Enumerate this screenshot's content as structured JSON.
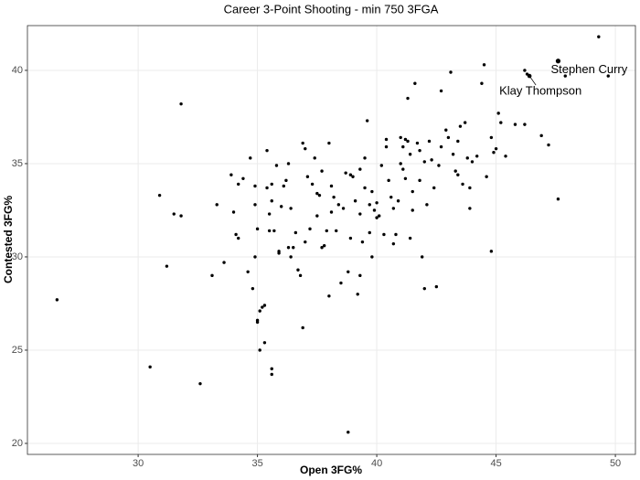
{
  "chart_data": {
    "type": "scatter",
    "title": "Career 3-Point Shooting - min 750 3FGA",
    "x_label": "Open 3FG%",
    "y_label": "Contested 3FG%",
    "color": "#000000",
    "grid": true,
    "xlim": [
      25.36,
      50.84
    ],
    "ylim": [
      19.41,
      42.4
    ],
    "xticks": [
      30,
      35,
      40,
      45,
      50
    ],
    "yticks": [
      20,
      25,
      30,
      35,
      40
    ],
    "x": [
      26.6,
      30.5,
      30.9,
      31.2,
      31.5,
      31.8,
      31.8,
      32.6,
      33.1,
      33.3,
      33.6,
      33.9,
      34.0,
      34.1,
      34.2,
      34.2,
      34.4,
      34.6,
      34.7,
      34.8,
      34.9,
      34.9,
      34.9,
      35.0,
      35.0,
      35.0,
      35.1,
      35.2,
      35.3,
      35.1,
      35.3,
      35.4,
      35.4,
      35.5,
      35.5,
      35.6,
      35.6,
      35.6,
      35.6,
      35.7,
      35.8,
      35.9,
      35.9,
      36.0,
      36.1,
      36.2,
      36.3,
      36.3,
      36.4,
      36.4,
      36.5,
      36.6,
      36.7,
      36.8,
      36.9,
      36.9,
      37.0,
      37.0,
      37.1,
      37.2,
      37.3,
      37.4,
      37.5,
      37.5,
      37.6,
      37.7,
      37.7,
      37.8,
      37.9,
      38.0,
      38.0,
      38.1,
      38.1,
      38.2,
      38.3,
      38.4,
      38.5,
      38.6,
      38.7,
      38.8,
      38.8,
      38.9,
      38.9,
      39.0,
      39.1,
      39.2,
      39.3,
      39.3,
      39.3,
      39.4,
      39.5,
      39.5,
      39.6,
      39.7,
      39.7,
      39.8,
      39.8,
      39.9,
      40.0,
      40.0,
      40.1,
      40.2,
      40.3,
      40.4,
      40.4,
      40.5,
      40.6,
      40.7,
      40.7,
      40.8,
      40.9,
      41.0,
      41.0,
      41.1,
      41.1,
      41.2,
      41.2,
      41.3,
      41.3,
      41.4,
      41.4,
      41.5,
      41.5,
      41.6,
      41.7,
      41.8,
      41.8,
      41.9,
      42.0,
      42.0,
      42.1,
      42.2,
      42.3,
      42.4,
      42.5,
      42.6,
      42.7,
      42.7,
      42.9,
      43.0,
      43.2,
      43.3,
      43.4,
      43.5,
      43.6,
      43.7,
      43.1,
      43.4,
      43.8,
      43.9,
      43.9,
      44.0,
      44.2,
      44.4,
      44.5,
      44.6,
      44.8,
      44.9,
      45.0,
      45.1,
      45.2,
      45.4,
      44.8,
      45.8,
      46.2,
      46.9,
      47.2,
      46.2,
      46.3,
      47.6,
      47.9,
      49.3,
      49.7
    ],
    "values": [
      27.7,
      24.1,
      33.3,
      29.5,
      32.3,
      32.2,
      38.2,
      23.2,
      29.0,
      32.8,
      29.7,
      34.4,
      32.4,
      31.2,
      31.0,
      33.9,
      34.2,
      29.2,
      35.3,
      28.3,
      30.0,
      33.8,
      32.8,
      31.5,
      26.6,
      26.5,
      27.1,
      27.3,
      27.4,
      25.0,
      25.4,
      35.7,
      33.7,
      31.4,
      32.3,
      33.9,
      33.0,
      24.0,
      23.7,
      31.4,
      34.9,
      30.3,
      30.2,
      32.7,
      33.8,
      34.1,
      35.0,
      30.5,
      30.0,
      32.6,
      30.5,
      31.3,
      29.3,
      29.0,
      36.1,
      26.2,
      30.8,
      35.8,
      34.3,
      31.5,
      33.9,
      35.3,
      33.4,
      32.2,
      33.3,
      34.6,
      30.5,
      30.6,
      31.4,
      36.1,
      27.9,
      33.8,
      32.4,
      33.2,
      31.4,
      32.8,
      28.6,
      32.6,
      34.5,
      20.6,
      29.2,
      31.0,
      34.4,
      34.3,
      33.0,
      28.0,
      34.7,
      32.3,
      29.0,
      30.8,
      35.3,
      33.7,
      37.3,
      31.3,
      32.8,
      30.0,
      33.5,
      32.5,
      32.1,
      32.9,
      32.2,
      34.9,
      31.2,
      35.9,
      36.3,
      34.1,
      33.2,
      30.7,
      32.6,
      31.2,
      33.0,
      35.0,
      36.4,
      35.9,
      34.7,
      36.3,
      34.2,
      38.5,
      36.2,
      35.5,
      31.0,
      33.5,
      32.5,
      39.3,
      36.1,
      35.7,
      34.1,
      30.0,
      28.3,
      35.1,
      32.8,
      36.2,
      35.2,
      33.7,
      28.4,
      34.9,
      35.9,
      38.9,
      36.8,
      36.4,
      35.5,
      34.6,
      36.2,
      37.0,
      33.9,
      37.2,
      39.9,
      34.4,
      35.3,
      32.6,
      33.7,
      35.1,
      35.4,
      39.3,
      40.3,
      34.3,
      36.4,
      35.6,
      35.8,
      37.7,
      37.2,
      35.4,
      30.3,
      37.1,
      37.1,
      36.5,
      36.0,
      40.0,
      39.8,
      33.1,
      39.7,
      41.8,
      39.7
    ],
    "annotations": [
      {
        "text": "Stephen Curry",
        "x": 47.6,
        "y": 40.5
      },
      {
        "text": "Klay Thompson",
        "x": 46.4,
        "y": 39.7
      }
    ]
  }
}
